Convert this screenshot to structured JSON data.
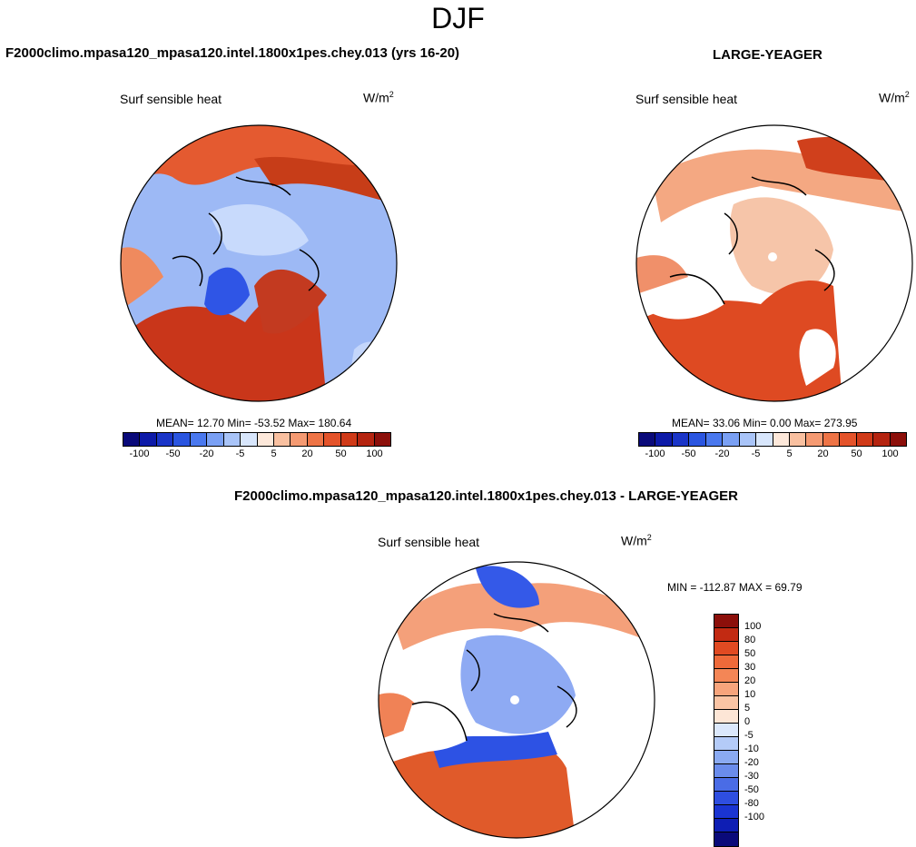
{
  "season": "DJF",
  "panels": [
    {
      "case": "F2000climo.mpasa120_mpasa120.intel.1800x1pes.chey.013 (yrs 16-20)",
      "variable": "Surf sensible heat",
      "units_base": "W/m",
      "units_exp": "2",
      "stats": "MEAN=  12.70  Min= -53.52  Max= 180.64",
      "mean": 12.7,
      "min": -53.52,
      "max": 180.64
    },
    {
      "case": "LARGE-YEAGER",
      "variable": "Surf sensible heat",
      "units_base": "W/m",
      "units_exp": "2",
      "stats": "MEAN=  33.06  Min=   0.00  Max= 273.95",
      "mean": 33.06,
      "min": 0.0,
      "max": 273.95
    },
    {
      "case": "F2000climo.mpasa120_mpasa120.intel.1800x1pes.chey.013 - LARGE-YEAGER",
      "variable": "Surf sensible heat",
      "units_base": "W/m",
      "units_exp": "2",
      "stats": "MIN = -112.87 MAX =  69.79",
      "min": -112.87,
      "max": 69.79
    }
  ],
  "colorbar_main": {
    "colors": [
      "#0a0a7a",
      "#0d1aa8",
      "#1a35c8",
      "#2a55e0",
      "#4a78ee",
      "#7aa0f4",
      "#a9c4f8",
      "#d8e6fc",
      "#fde8da",
      "#f9c0a0",
      "#f59a72",
      "#ee7446",
      "#e4532a",
      "#d03a18",
      "#b52410",
      "#8c0f0a"
    ],
    "labels": [
      "-100",
      "-50",
      "-20",
      "-5",
      "5",
      "20",
      "50",
      "100"
    ]
  },
  "colorbar_diff": {
    "colors": [
      "#8c0f0a",
      "#c22a12",
      "#e04a22",
      "#ee6a3a",
      "#f48656",
      "#f7a47c",
      "#fac4a4",
      "#fde6d6",
      "#dbe8fc",
      "#b4cbf8",
      "#8aaaf2",
      "#6a8cec",
      "#4a6ce6",
      "#2e4ee0",
      "#1a34d2",
      "#0e1eb4",
      "#0a0a7a"
    ],
    "labels": [
      "100",
      "80",
      "50",
      "30",
      "20",
      "10",
      "5",
      "0",
      "-5",
      "-10",
      "-20",
      "-30",
      "-50",
      "-80",
      "-100"
    ]
  }
}
